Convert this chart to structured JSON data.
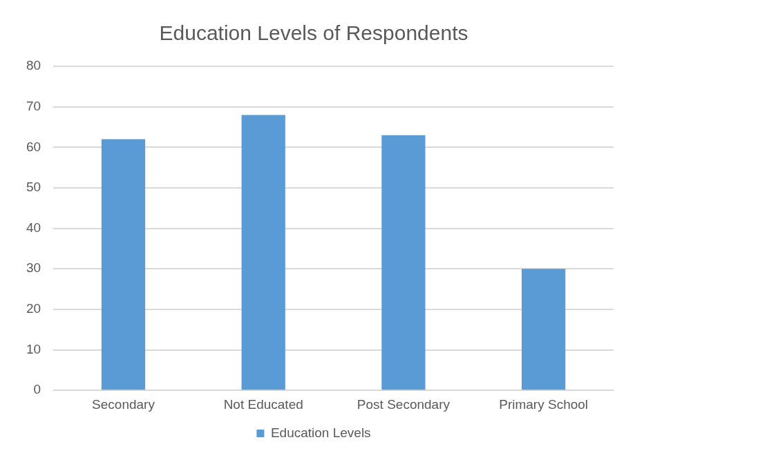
{
  "chart_data": {
    "type": "bar",
    "title": "Education Levels of Respondents",
    "categories": [
      "Secondary",
      "Not Educated",
      "Post Secondary",
      "Primary School"
    ],
    "series": [
      {
        "name": "Education Levels",
        "color": "#5b9bd5",
        "values": [
          62,
          68,
          63,
          30
        ]
      }
    ],
    "ylim": [
      0,
      80
    ],
    "yticks": [
      0,
      10,
      20,
      30,
      40,
      50,
      60,
      70,
      80
    ],
    "grid": "y",
    "legend": "bottom"
  }
}
